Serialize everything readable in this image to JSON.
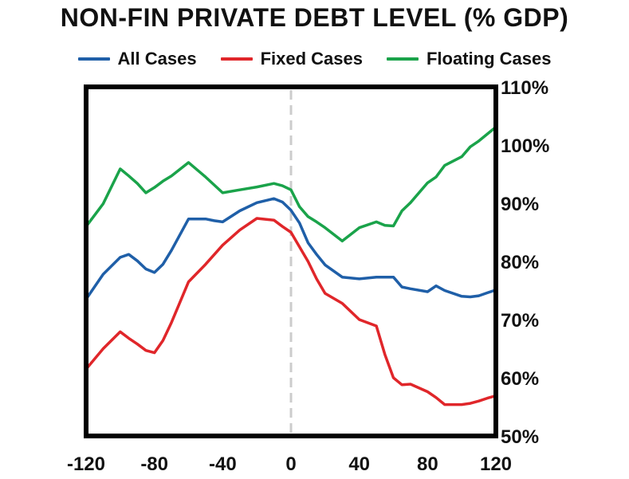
{
  "chart_data": {
    "type": "line",
    "title": "NON-FIN PRIVATE DEBT LEVEL (% GDP)",
    "xlabel": "",
    "ylabel": "",
    "xlim": [
      -120,
      120
    ],
    "ylim": [
      50,
      110
    ],
    "x_ticks": [
      -120,
      -80,
      -40,
      0,
      40,
      80,
      120
    ],
    "y_ticks": [
      50,
      60,
      70,
      80,
      90,
      100,
      110
    ],
    "x_tick_labels": [
      "-120",
      "-80",
      "-40",
      "0",
      "40",
      "80",
      "120"
    ],
    "y_tick_labels": [
      "50%",
      "60%",
      "70%",
      "80%",
      "90%",
      "100%",
      "110%"
    ],
    "y_axis_side": "right",
    "grid": false,
    "vline": {
      "x": 0,
      "style": "dashed",
      "color": "#cccccc"
    },
    "legend_position": "top",
    "series": [
      {
        "name": "All Cases",
        "color": "#1f5fa8",
        "x": [
          -120,
          -110,
          -100,
          -95,
          -90,
          -85,
          -80,
          -75,
          -70,
          -60,
          -50,
          -45,
          -40,
          -30,
          -20,
          -10,
          -5,
          0,
          5,
          10,
          15,
          20,
          30,
          40,
          50,
          60,
          65,
          70,
          80,
          85,
          90,
          100,
          105,
          110,
          115,
          120
        ],
        "y": [
          73.5,
          77.8,
          80.7,
          81.2,
          80.1,
          78.7,
          78.1,
          79.5,
          81.9,
          87.3,
          87.3,
          87.0,
          86.8,
          88.7,
          90.1,
          90.8,
          90.2,
          88.8,
          86.6,
          83.2,
          81.2,
          79.4,
          77.3,
          77.0,
          77.3,
          77.3,
          75.6,
          75.3,
          74.8,
          75.8,
          75.0,
          74.0,
          73.9,
          74.1,
          74.6,
          75.1
        ]
      },
      {
        "name": "Fixed Cases",
        "color": "#e0262a",
        "x": [
          -120,
          -110,
          -100,
          -95,
          -90,
          -85,
          -80,
          -75,
          -70,
          -60,
          -50,
          -40,
          -30,
          -20,
          -10,
          -5,
          0,
          5,
          10,
          15,
          20,
          30,
          40,
          50,
          55,
          60,
          65,
          70,
          80,
          85,
          90,
          100,
          105,
          110,
          115,
          120
        ],
        "y": [
          61.5,
          65.0,
          67.9,
          66.8,
          65.8,
          64.7,
          64.3,
          66.4,
          69.5,
          76.5,
          79.5,
          82.8,
          85.4,
          87.4,
          87.1,
          86.0,
          85.0,
          82.5,
          80.0,
          77.0,
          74.5,
          72.8,
          70.0,
          68.9,
          64.0,
          60.0,
          58.8,
          58.9,
          57.6,
          56.6,
          55.4,
          55.4,
          55.6,
          56.0,
          56.5,
          56.9
        ]
      },
      {
        "name": "Floating Cases",
        "color": "#1aa34a",
        "x": [
          -120,
          -110,
          -100,
          -95,
          -90,
          -85,
          -80,
          -75,
          -70,
          -60,
          -50,
          -40,
          -30,
          -20,
          -10,
          -5,
          0,
          5,
          10,
          15,
          20,
          30,
          40,
          50,
          55,
          60,
          65,
          70,
          80,
          85,
          90,
          100,
          105,
          110,
          115,
          120
        ],
        "y": [
          86.0,
          89.9,
          95.9,
          94.7,
          93.4,
          91.8,
          92.7,
          93.8,
          94.7,
          97.0,
          94.5,
          91.8,
          92.3,
          92.8,
          93.4,
          93.0,
          92.3,
          89.4,
          87.7,
          86.8,
          85.8,
          83.5,
          85.8,
          86.8,
          86.2,
          86.1,
          88.7,
          90.1,
          93.5,
          94.5,
          96.5,
          98.0,
          99.7,
          100.7,
          101.9,
          103.1
        ]
      }
    ]
  }
}
